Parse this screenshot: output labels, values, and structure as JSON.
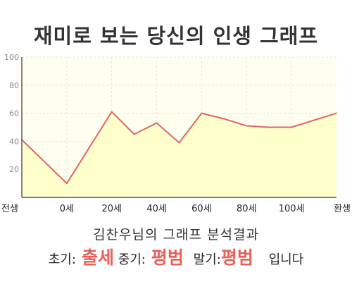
{
  "page": {
    "title": "재미로 보는 당신의 인생 그래프",
    "subtitle": "김찬우님의 그래프 분석결과",
    "result": {
      "early_label": "초기:",
      "early_value": "출세",
      "mid_label": "중기:",
      "mid_value": "평범",
      "late_label": "말기:",
      "late_value": "평범",
      "suffix": "입니다"
    }
  },
  "colors": {
    "line": "#e06666",
    "fill": "#ffffcc",
    "plot_bg": "#fffff0",
    "accent_text": "#e8605a"
  },
  "chart_data": {
    "type": "area",
    "title": "재미로 보는 당신의 인생 그래프",
    "xlabel": "",
    "ylabel": "",
    "x_ticks": [
      "전생",
      "0세",
      "20세",
      "40세",
      "60세",
      "80세",
      "100세",
      "환생"
    ],
    "y_ticks": [
      "20",
      "40",
      "60",
      "80",
      "100"
    ],
    "ylim": [
      0,
      100
    ],
    "grid": true,
    "points": [
      {
        "x": 0,
        "y": 41
      },
      {
        "x": 1,
        "y": 10
      },
      {
        "x": 2,
        "y": 61
      },
      {
        "x": 2.5,
        "y": 45
      },
      {
        "x": 3,
        "y": 53
      },
      {
        "x": 3.5,
        "y": 39
      },
      {
        "x": 4,
        "y": 60
      },
      {
        "x": 4.5,
        "y": 56
      },
      {
        "x": 5,
        "y": 51
      },
      {
        "x": 5.5,
        "y": 50
      },
      {
        "x": 6,
        "y": 50
      },
      {
        "x": 7,
        "y": 60
      }
    ]
  }
}
